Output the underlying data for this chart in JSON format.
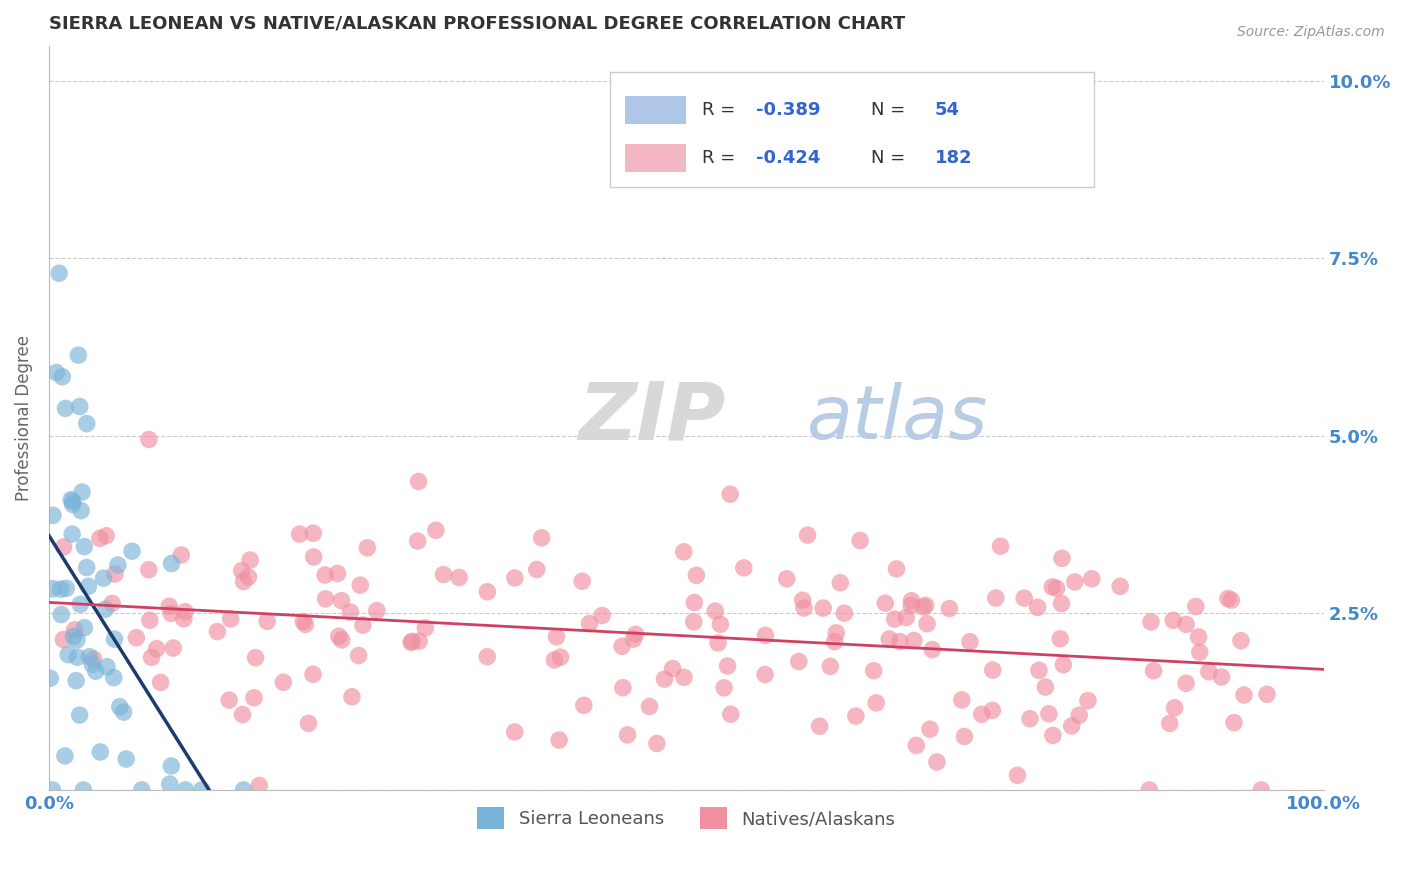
{
  "title": "SIERRA LEONEAN VS NATIVE/ALASKAN PROFESSIONAL DEGREE CORRELATION CHART",
  "source_text": "Source: ZipAtlas.com",
  "ylabel": "Professional Degree",
  "x_min": 0.0,
  "x_max": 100.0,
  "y_min": 0.0,
  "y_max": 10.5,
  "ytick_values": [
    0.0,
    2.5,
    5.0,
    7.5,
    10.0
  ],
  "ytick_labels": [
    "",
    "2.5%",
    "5.0%",
    "7.5%",
    "10.0%"
  ],
  "xtick_values": [
    0.0,
    100.0
  ],
  "xtick_labels": [
    "0.0%",
    "100.0%"
  ],
  "sierra_color": "#7ab3d8",
  "native_color": "#f090a0",
  "sierra_line_color": "#1a3c6e",
  "native_line_color": "#d04060",
  "background_color": "#ffffff",
  "grid_color": "#cccccc",
  "title_color": "#333333",
  "axis_label_color": "#4488cc",
  "legend_box_color": "#aec6e8",
  "legend_box_color2": "#f4b8c4",
  "legend_R1": "-0.389",
  "legend_N1": "54",
  "legend_R2": "-0.424",
  "legend_N2": "182",
  "bottom_legend_labels": [
    "Sierra Leoneans",
    "Natives/Alaskans"
  ],
  "sierra_seed": 7,
  "native_seed": 99,
  "sierra_n": 54,
  "native_n": 182
}
